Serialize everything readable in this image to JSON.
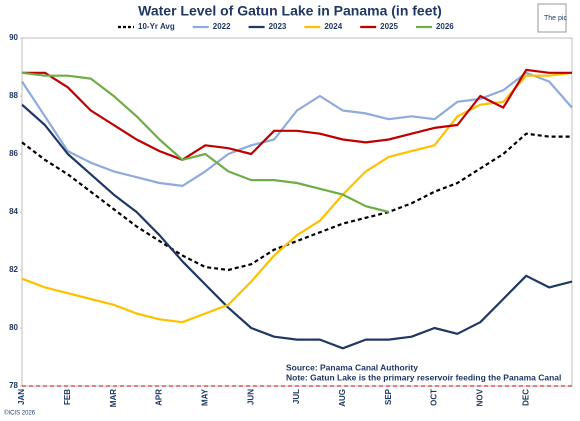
{
  "chart_data": {
    "type": "line",
    "title": "Water Level of Gatun Lake in Panama (in feet)",
    "categories": [
      "JAN",
      null,
      "FEB",
      null,
      "MAR",
      null,
      "APR",
      null,
      "MAY",
      null,
      "JUN",
      null,
      "JUL",
      null,
      "AUG",
      null,
      "SEP",
      null,
      "OCT",
      null,
      "NOV",
      null,
      "DEC",
      null,
      null
    ],
    "series": [
      {
        "name": "10-Yr Avg",
        "color": "#000000",
        "style": "dashed",
        "values": [
          86.4,
          85.8,
          85.3,
          84.7,
          84.1,
          83.5,
          83.0,
          82.5,
          82.1,
          82.0,
          82.2,
          82.7,
          83.0,
          83.3,
          83.6,
          83.8,
          84.0,
          84.3,
          84.7,
          85.0,
          85.5,
          86.0,
          86.7,
          86.6,
          86.6
        ]
      },
      {
        "name": "2022",
        "color": "#8faadc",
        "style": "solid",
        "values": [
          88.5,
          87.3,
          86.1,
          85.7,
          85.4,
          85.2,
          85.0,
          84.9,
          85.4,
          86.0,
          86.3,
          86.5,
          87.5,
          88.0,
          87.5,
          87.4,
          87.2,
          87.3,
          87.2,
          87.8,
          87.9,
          88.2,
          88.8,
          88.5,
          87.6
        ]
      },
      {
        "name": "2023",
        "color": "#1f3864",
        "style": "solid",
        "values": [
          87.7,
          87.0,
          86.0,
          85.3,
          84.6,
          84.0,
          83.2,
          82.3,
          81.5,
          80.7,
          80.0,
          79.7,
          79.6,
          79.6,
          79.3,
          79.6,
          79.6,
          79.7,
          80.0,
          79.8,
          80.2,
          81.0,
          81.8,
          81.4,
          81.6
        ]
      },
      {
        "name": "2024",
        "color": "#ffc000",
        "style": "solid",
        "values": [
          81.7,
          81.4,
          81.2,
          81.0,
          80.8,
          80.5,
          80.3,
          80.2,
          80.5,
          80.8,
          81.6,
          82.5,
          83.2,
          83.7,
          84.6,
          85.4,
          85.9,
          86.1,
          86.3,
          87.3,
          87.7,
          87.8,
          88.7,
          88.7,
          88.8
        ]
      },
      {
        "name": "2025",
        "color": "#c00000",
        "style": "solid",
        "values": [
          88.8,
          88.8,
          88.3,
          87.5,
          87.0,
          86.5,
          86.1,
          85.8,
          86.3,
          86.2,
          86.0,
          86.8,
          86.8,
          86.7,
          86.5,
          86.4,
          86.5,
          86.7,
          86.9,
          87.0,
          88.0,
          87.6,
          88.9,
          88.8,
          88.8
        ]
      },
      {
        "name": "2026",
        "color": "#70ad47",
        "style": "solid",
        "values": [
          88.8,
          88.7,
          88.7,
          88.6,
          88.0,
          87.3,
          86.5,
          85.8,
          86.0,
          85.4,
          85.1,
          85.1,
          85.0,
          84.8,
          84.6,
          84.2,
          84.0,
          null,
          null,
          null,
          null,
          null,
          null,
          null,
          null
        ]
      }
    ],
    "ylim": [
      78,
      90
    ],
    "yticks": [
      78,
      80,
      82,
      84,
      86,
      88,
      90
    ],
    "reference_line": {
      "value": 78,
      "color": "#c00000"
    },
    "annotations": [
      "Source: Panama Canal Authority",
      "Note: Gatun Lake is the primary reservoir feeding the Panama Canal"
    ],
    "copyright": "©ICIS 2026",
    "image_alt": "The pic"
  }
}
